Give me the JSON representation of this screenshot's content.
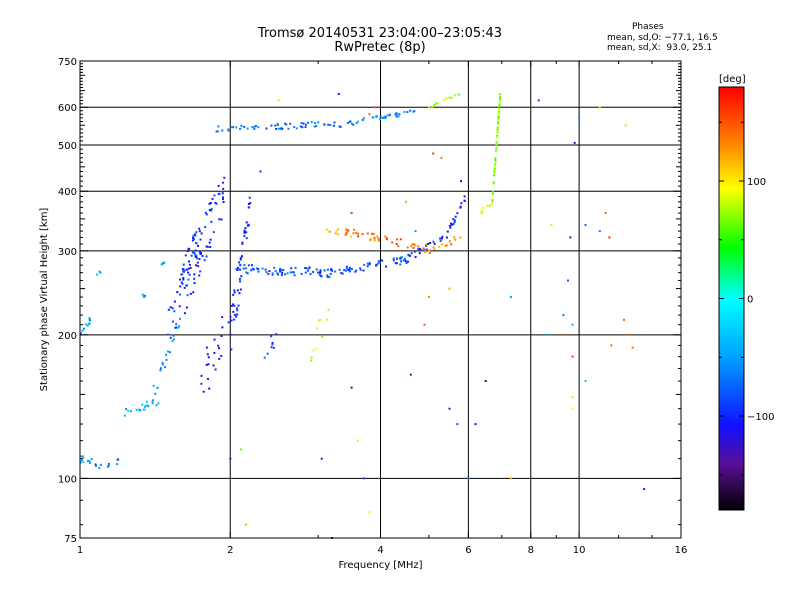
{
  "header": {
    "title": "Tromsø 20140531 23:04:00–23:05:43",
    "subtitle": "RwPretec (8p)",
    "stats_heading": "Phases",
    "stats_line1": "mean, sd,O: −77.1, 16.5",
    "stats_line2": "mean, sd,X:  93.0, 25.1"
  },
  "colorbar": {
    "unit_label": "[deg]",
    "ticks": [
      {
        "label": "100",
        "value": 100
      },
      {
        "label": "0",
        "value": 0
      },
      {
        "label": "−100",
        "value": -100
      }
    ],
    "range": [
      -180,
      180
    ]
  },
  "chart_data": {
    "type": "scatter",
    "title": "Tromsø 20140531 23:04:00–23:05:43",
    "subtitle": "RwPretec (8p)",
    "xlabel": "Frequency [MHz]",
    "ylabel": "Stationary phase Virtual Height [km]",
    "x_scale": "log",
    "y_scale": "log",
    "xlim": [
      1,
      16
    ],
    "ylim": [
      75,
      750
    ],
    "x_ticks": [
      {
        "label": "1",
        "value": 1
      },
      {
        "label": "2",
        "value": 2
      },
      {
        "label": "4",
        "value": 4
      },
      {
        "label": "6",
        "value": 6
      },
      {
        "label": "8",
        "value": 8
      },
      {
        "label": "10",
        "value": 10
      },
      {
        "label": "16",
        "value": 16
      }
    ],
    "y_ticks": [
      {
        "label": "75",
        "value": 75
      },
      {
        "label": "100",
        "value": 100
      },
      {
        "label": "200",
        "value": 200
      },
      {
        "label": "300",
        "value": 300
      },
      {
        "label": "400",
        "value": 400
      },
      {
        "label": "500",
        "value": 500
      },
      {
        "label": "600",
        "value": 600
      },
      {
        "label": "750",
        "value": 750
      }
    ],
    "x_gridlines": [
      2,
      4,
      6,
      8,
      10
    ],
    "y_gridlines": [
      100,
      200,
      300,
      400,
      500,
      600
    ],
    "grid": true,
    "color_quantity": "phase [deg]",
    "segments": [
      {
        "f1": 1.0,
        "f2": 1.06,
        "h1": 110,
        "h2": 108,
        "phase": -40,
        "n": 10,
        "sh": 2
      },
      {
        "f1": 1.06,
        "f2": 1.2,
        "h1": 106,
        "h2": 108,
        "phase": -70,
        "n": 10,
        "sh": 2
      },
      {
        "f1": 1.22,
        "f2": 1.45,
        "h1": 138,
        "h2": 145,
        "phase": -40,
        "n": 18,
        "sh": 3
      },
      {
        "f1": 1.4,
        "f2": 1.6,
        "h1": 150,
        "h2": 220,
        "phase": -50,
        "n": 20,
        "sh": 6
      },
      {
        "f1": 1.5,
        "f2": 1.72,
        "h1": 200,
        "h2": 330,
        "phase": -90,
        "n": 40,
        "sh": 25
      },
      {
        "f1": 1.6,
        "f2": 1.95,
        "h1": 250,
        "h2": 400,
        "phase": -100,
        "n": 80,
        "sh": 40
      },
      {
        "f1": 1.0,
        "f2": 1.05,
        "h1": 200,
        "h2": 215,
        "phase": -50,
        "n": 12,
        "sh": 4
      },
      {
        "f1": 1.08,
        "f2": 1.1,
        "h1": 268,
        "h2": 272,
        "phase": -50,
        "n": 3,
        "sh": 2
      },
      {
        "f1": 1.3,
        "f2": 1.35,
        "h1": 240,
        "h2": 242,
        "phase": -60,
        "n": 4,
        "sh": 2
      },
      {
        "f1": 1.4,
        "f2": 1.48,
        "h1": 280,
        "h2": 282,
        "phase": -50,
        "n": 4,
        "sh": 2
      },
      {
        "f1": 1.75,
        "f2": 2.05,
        "h1": 160,
        "h2": 230,
        "phase": -110,
        "n": 25,
        "sh": 20
      },
      {
        "f1": 2.0,
        "f2": 2.2,
        "h1": 200,
        "h2": 380,
        "phase": -100,
        "n": 45,
        "sh": 30
      },
      {
        "f1": 2.05,
        "f2": 3.2,
        "h1": 275,
        "h2": 270,
        "phase": -80,
        "n": 60,
        "sh": 6
      },
      {
        "f1": 3.0,
        "f2": 4.6,
        "h1": 268,
        "h2": 288,
        "phase": -85,
        "n": 60,
        "sh": 5
      },
      {
        "f1": 4.5,
        "f2": 5.4,
        "h1": 288,
        "h2": 320,
        "phase": -95,
        "n": 20,
        "sh": 5
      },
      {
        "f1": 5.4,
        "f2": 6.0,
        "h1": 320,
        "h2": 400,
        "phase": -110,
        "n": 18,
        "sh": 5
      },
      {
        "f1": 3.1,
        "f2": 3.5,
        "h1": 335,
        "h2": 325,
        "phase": 110,
        "n": 12,
        "sh": 6
      },
      {
        "f1": 3.4,
        "f2": 5.2,
        "h1": 330,
        "h2": 300,
        "phase": 140,
        "n": 45,
        "sh": 6
      },
      {
        "f1": 5.0,
        "f2": 5.8,
        "h1": 300,
        "h2": 320,
        "phase": 130,
        "n": 10,
        "sh": 5
      },
      {
        "f1": 1.85,
        "f2": 3.6,
        "h1": 540,
        "h2": 555,
        "phase": -70,
        "n": 60,
        "sh": 8
      },
      {
        "f1": 3.6,
        "f2": 5.0,
        "h1": 560,
        "h2": 595,
        "phase": -60,
        "n": 30,
        "sh": 6
      },
      {
        "f1": 5.0,
        "f2": 5.8,
        "h1": 600,
        "h2": 640,
        "phase": 70,
        "n": 12,
        "sh": 6
      },
      {
        "f1": 6.7,
        "f2": 6.95,
        "h1": 380,
        "h2": 640,
        "phase": 70,
        "n": 50,
        "sh": 5
      },
      {
        "f1": 6.3,
        "f2": 6.7,
        "h1": 360,
        "h2": 380,
        "phase": 90,
        "n": 8,
        "sh": 6
      },
      {
        "f1": 2.9,
        "f2": 3.2,
        "h1": 190,
        "h2": 230,
        "phase": 80,
        "n": 10,
        "sh": 15
      },
      {
        "f1": 2.3,
        "f2": 2.5,
        "h1": 180,
        "h2": 200,
        "phase": -90,
        "n": 8,
        "sh": 8
      }
    ],
    "scatter_points": [
      [
        3.8,
        580,
        140
      ],
      [
        3.9,
        600,
        150
      ],
      [
        5.1,
        480,
        160
      ],
      [
        5.3,
        470,
        140
      ],
      [
        4.5,
        380,
        120
      ],
      [
        4.7,
        330,
        -50
      ],
      [
        5.8,
        420,
        -110
      ],
      [
        3.5,
        360,
        160
      ],
      [
        3.3,
        640,
        -110
      ],
      [
        2.5,
        620,
        80
      ],
      [
        2.3,
        440,
        -100
      ],
      [
        2.0,
        110,
        -120
      ],
      [
        2.1,
        115,
        60
      ],
      [
        2.15,
        80,
        120
      ],
      [
        3.05,
        110,
        -120
      ],
      [
        3.2,
        75,
        -140
      ],
      [
        3.6,
        120,
        80
      ],
      [
        3.8,
        85,
        100
      ],
      [
        3.7,
        100,
        -80
      ],
      [
        4.9,
        210,
        150
      ],
      [
        4.6,
        165,
        -130
      ],
      [
        3.5,
        155,
        -150
      ],
      [
        5.5,
        250,
        120
      ],
      [
        5.0,
        240,
        130
      ],
      [
        5.5,
        140,
        -130
      ],
      [
        6.2,
        130,
        -110
      ],
      [
        7.3,
        100,
        120
      ],
      [
        6.5,
        160,
        -150
      ],
      [
        8.3,
        620,
        -90
      ],
      [
        9.5,
        260,
        -80
      ],
      [
        9.6,
        320,
        -130
      ],
      [
        10.0,
        570,
        -60
      ],
      [
        10.3,
        340,
        -70
      ],
      [
        11.0,
        600,
        110
      ],
      [
        12.4,
        550,
        110
      ],
      [
        11.5,
        320,
        160
      ],
      [
        11.3,
        360,
        140
      ],
      [
        12.3,
        215,
        150
      ],
      [
        12.6,
        200,
        140
      ],
      [
        8.6,
        200,
        -40
      ],
      [
        9.3,
        200,
        150
      ],
      [
        8.8,
        340,
        80
      ],
      [
        9.7,
        210,
        -40
      ],
      [
        9.7,
        180,
        160
      ],
      [
        9.7,
        148,
        110
      ],
      [
        9.7,
        140,
        90
      ],
      [
        11.6,
        190,
        140
      ],
      [
        12.8,
        188,
        140
      ],
      [
        10.3,
        160,
        -30
      ],
      [
        9.3,
        220,
        -60
      ],
      [
        7.3,
        240,
        -50
      ],
      [
        6.0,
        100,
        -60
      ],
      [
        5.7,
        130,
        -80
      ],
      [
        11.0,
        330,
        -60
      ],
      [
        9.8,
        505,
        -110
      ],
      [
        13.5,
        95,
        -100
      ]
    ]
  }
}
